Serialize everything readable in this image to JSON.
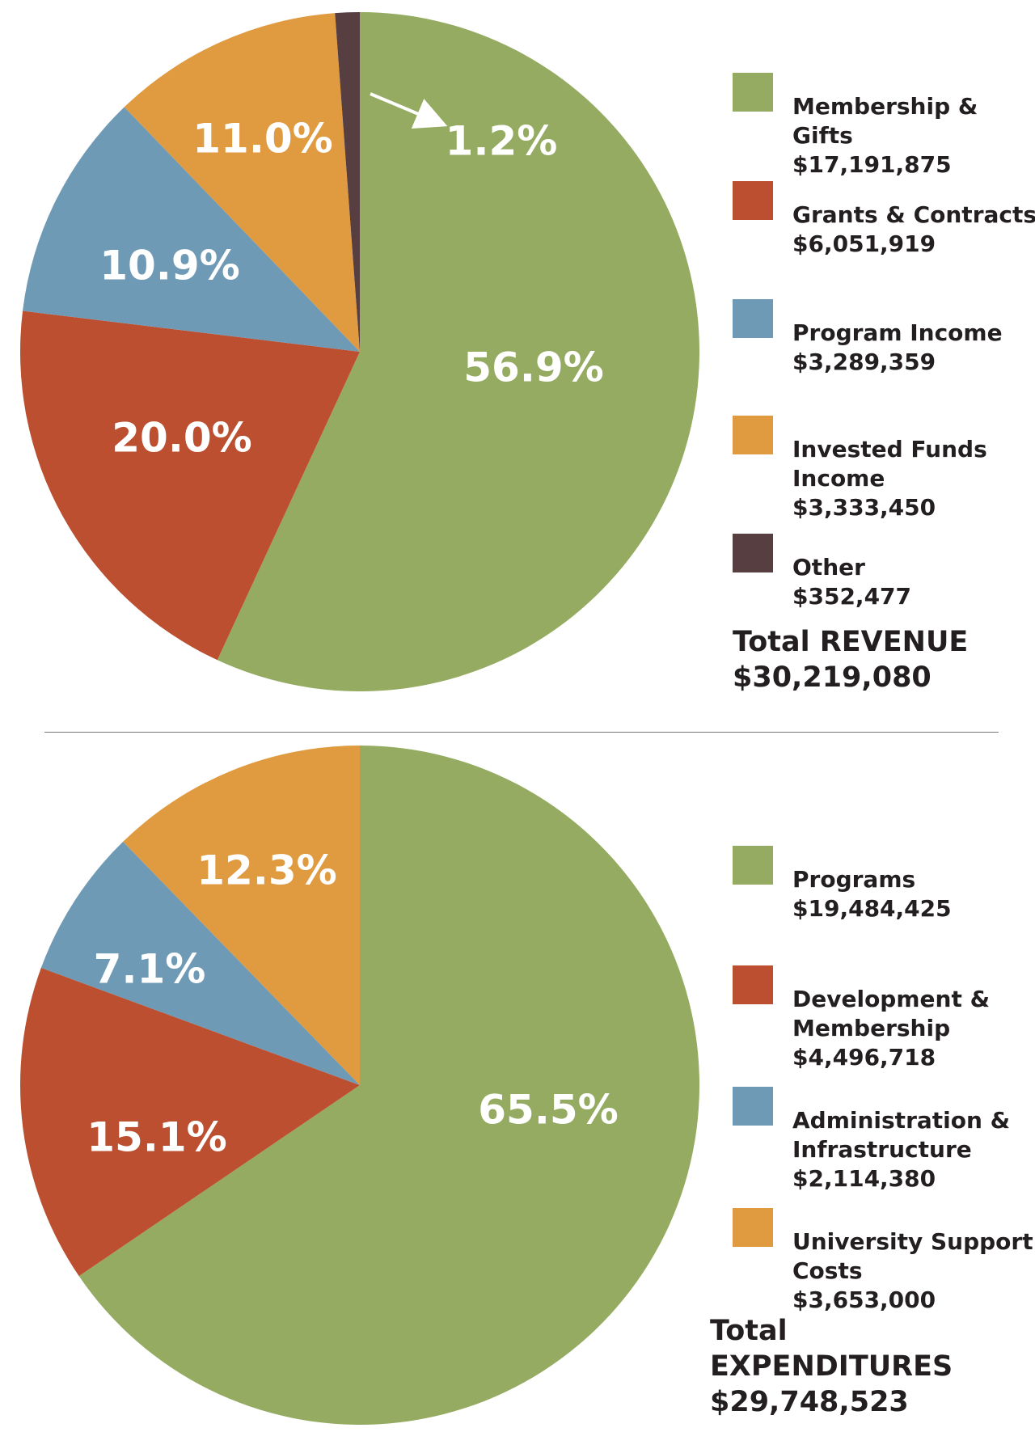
{
  "chart_data": [
    {
      "type": "pie",
      "title": "Total REVENUE",
      "total": "$30,219,080",
      "categories": [
        "Membership & Gifts",
        "Grants & Contracts",
        "Program Income",
        "Invested Funds Income",
        "Other"
      ],
      "values": [
        17191875,
        6051919,
        3289359,
        3333450,
        352477
      ],
      "value_labels": [
        "$17,191,875",
        "$6,051,919",
        "$3,289,359",
        "$3,333,450",
        "$352,477"
      ],
      "percent_labels": [
        "56.9%",
        "20.0%",
        "10.9%",
        "11.0%",
        "1.2%"
      ],
      "colors": [
        "#94ab61",
        "#bc4f30",
        "#6e9ab5",
        "#e09a40",
        "#573e41"
      ],
      "start": "top",
      "direction": "clockwise"
    },
    {
      "type": "pie",
      "title": "Total EXPENDITURES",
      "total": "$29,748,523",
      "categories": [
        "Programs",
        "Development & Membership",
        "Administration & Infrastructure",
        "University Support Costs"
      ],
      "values": [
        19484425,
        4496718,
        2114380,
        3653000
      ],
      "value_labels": [
        "$19,484,425",
        "$4,496,718",
        "$2,114,380",
        "$3,653,000"
      ],
      "percent_labels": [
        "65.5%",
        "15.1%",
        "7.1%",
        "12.3%"
      ],
      "colors": [
        "#94ab61",
        "#bc4f30",
        "#6e9ab5",
        "#e09a40"
      ],
      "start": "top",
      "direction": "clockwise"
    }
  ],
  "revenue": {
    "legend": [
      {
        "label": "Membership & Gifts",
        "value": "$17,191,875"
      },
      {
        "label": "Grants & Contracts",
        "value": "$6,051,919"
      },
      {
        "label": "Program Income",
        "value": "$3,289,359"
      },
      {
        "label": "Invested Funds\nIncome",
        "value": "$3,333,450"
      },
      {
        "label": "Other",
        "value": "$352,477"
      }
    ],
    "total_label": "Total REVENUE",
    "total_value": "$30,219,080"
  },
  "expenditures": {
    "legend": [
      {
        "label": "Programs",
        "value": "$19,484,425"
      },
      {
        "label": "Development &\nMembership",
        "value": "$4,496,718"
      },
      {
        "label": "Administration &\nInfrastructure",
        "value": "$2,114,380"
      },
      {
        "label": "University Support\nCosts",
        "value": "$3,653,000"
      }
    ],
    "total_label": "Total EXPENDITURES",
    "total_value": "$29,748,523"
  }
}
